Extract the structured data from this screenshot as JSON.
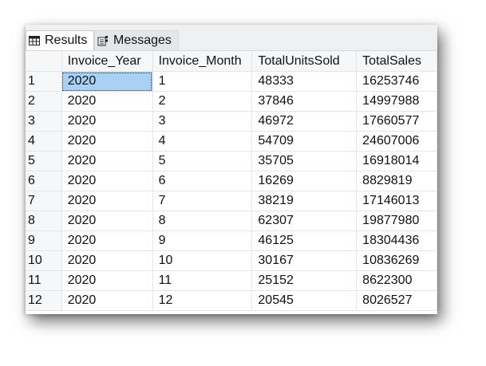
{
  "tabs": {
    "results_label": "Results",
    "messages_label": "Messages",
    "results_icon": "grid-icon",
    "messages_icon": "messages-icon"
  },
  "grid": {
    "columns": [
      "",
      "Invoice_Year",
      "Invoice_Month",
      "TotalUnitsSold",
      "TotalSales"
    ],
    "rows": [
      [
        "1",
        "2020",
        "1",
        "48333",
        "16253746"
      ],
      [
        "2",
        "2020",
        "2",
        "37846",
        "14997988"
      ],
      [
        "3",
        "2020",
        "3",
        "46972",
        "17660577"
      ],
      [
        "4",
        "2020",
        "4",
        "54709",
        "24607006"
      ],
      [
        "5",
        "2020",
        "5",
        "35705",
        "16918014"
      ],
      [
        "6",
        "2020",
        "6",
        "16269",
        "8829819"
      ],
      [
        "7",
        "2020",
        "7",
        "38219",
        "17146013"
      ],
      [
        "8",
        "2020",
        "8",
        "62307",
        "19877980"
      ],
      [
        "9",
        "2020",
        "9",
        "46125",
        "18304436"
      ],
      [
        "10",
        "2020",
        "10",
        "30167",
        "10836269"
      ],
      [
        "11",
        "2020",
        "11",
        "25152",
        "8622300"
      ],
      [
        "12",
        "2020",
        "12",
        "20545",
        "8026527"
      ]
    ]
  },
  "colors": {
    "selected_cell": "#a9d1f5",
    "grid_line": "#e3e5e8"
  }
}
